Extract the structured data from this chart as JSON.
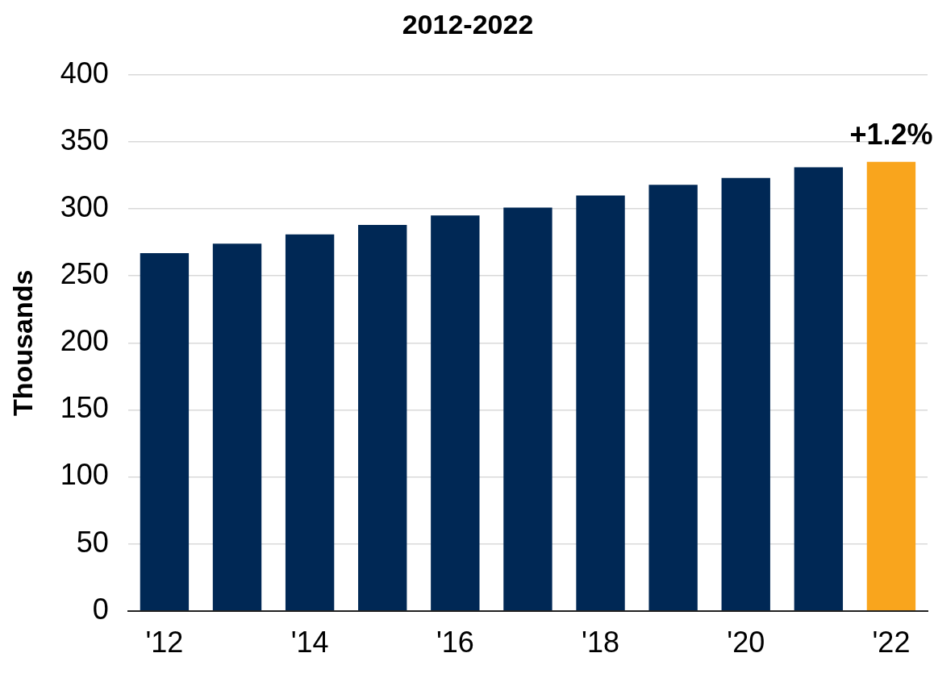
{
  "chart_data": {
    "type": "bar",
    "title": "2012-2022",
    "ylabel": "Thousands",
    "categories": [
      "'12",
      null,
      "'14",
      null,
      "'16",
      null,
      "'18",
      null,
      "'20",
      null,
      "'22"
    ],
    "values": [
      267,
      274,
      281,
      288,
      295,
      301,
      310,
      318,
      323,
      331,
      335
    ],
    "colors": [
      "#002855",
      "#002855",
      "#002855",
      "#002855",
      "#002855",
      "#002855",
      "#002855",
      "#002855",
      "#002855",
      "#002855",
      "#f9a51d"
    ],
    "ylim": [
      0,
      400
    ],
    "yticks": [
      0,
      50,
      100,
      150,
      200,
      250,
      300,
      350,
      400
    ],
    "grid": "y",
    "legend": false,
    "annotations": [
      {
        "text": "+1.2%",
        "x": "'22",
        "y": 335
      }
    ]
  }
}
